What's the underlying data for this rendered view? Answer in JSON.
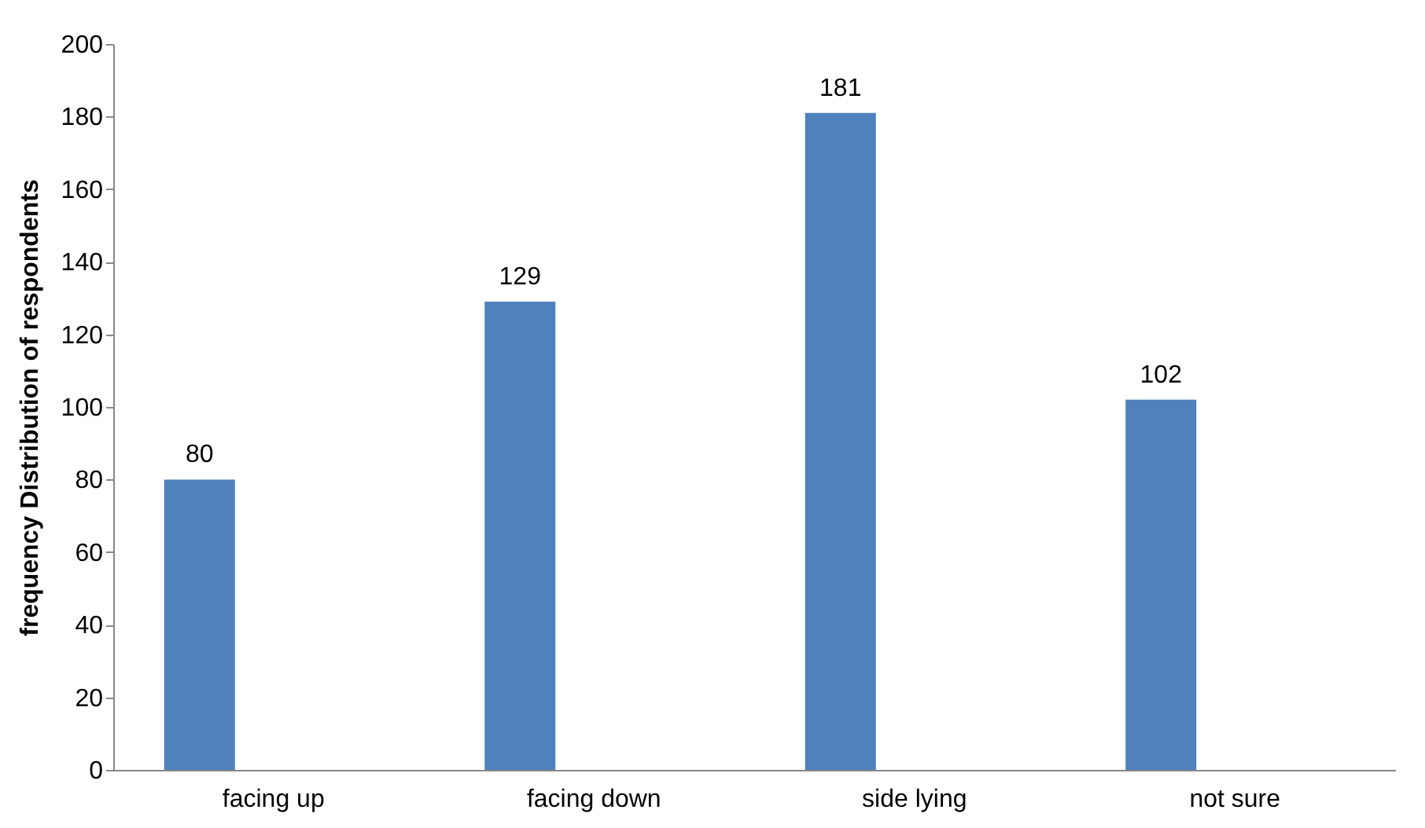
{
  "chart_data": {
    "type": "bar",
    "ylabel": "frequency Distribution of respondents",
    "categories": [
      "facing up",
      "facing down",
      "side lying",
      "not sure"
    ],
    "values": [
      80,
      129,
      181,
      102
    ],
    "color": "#4f81bd",
    "ylim": [
      0,
      200
    ],
    "yticks": [
      0,
      20,
      40,
      60,
      80,
      100,
      120,
      140,
      160,
      180,
      200
    ],
    "data_labels": true,
    "grid": false
  }
}
